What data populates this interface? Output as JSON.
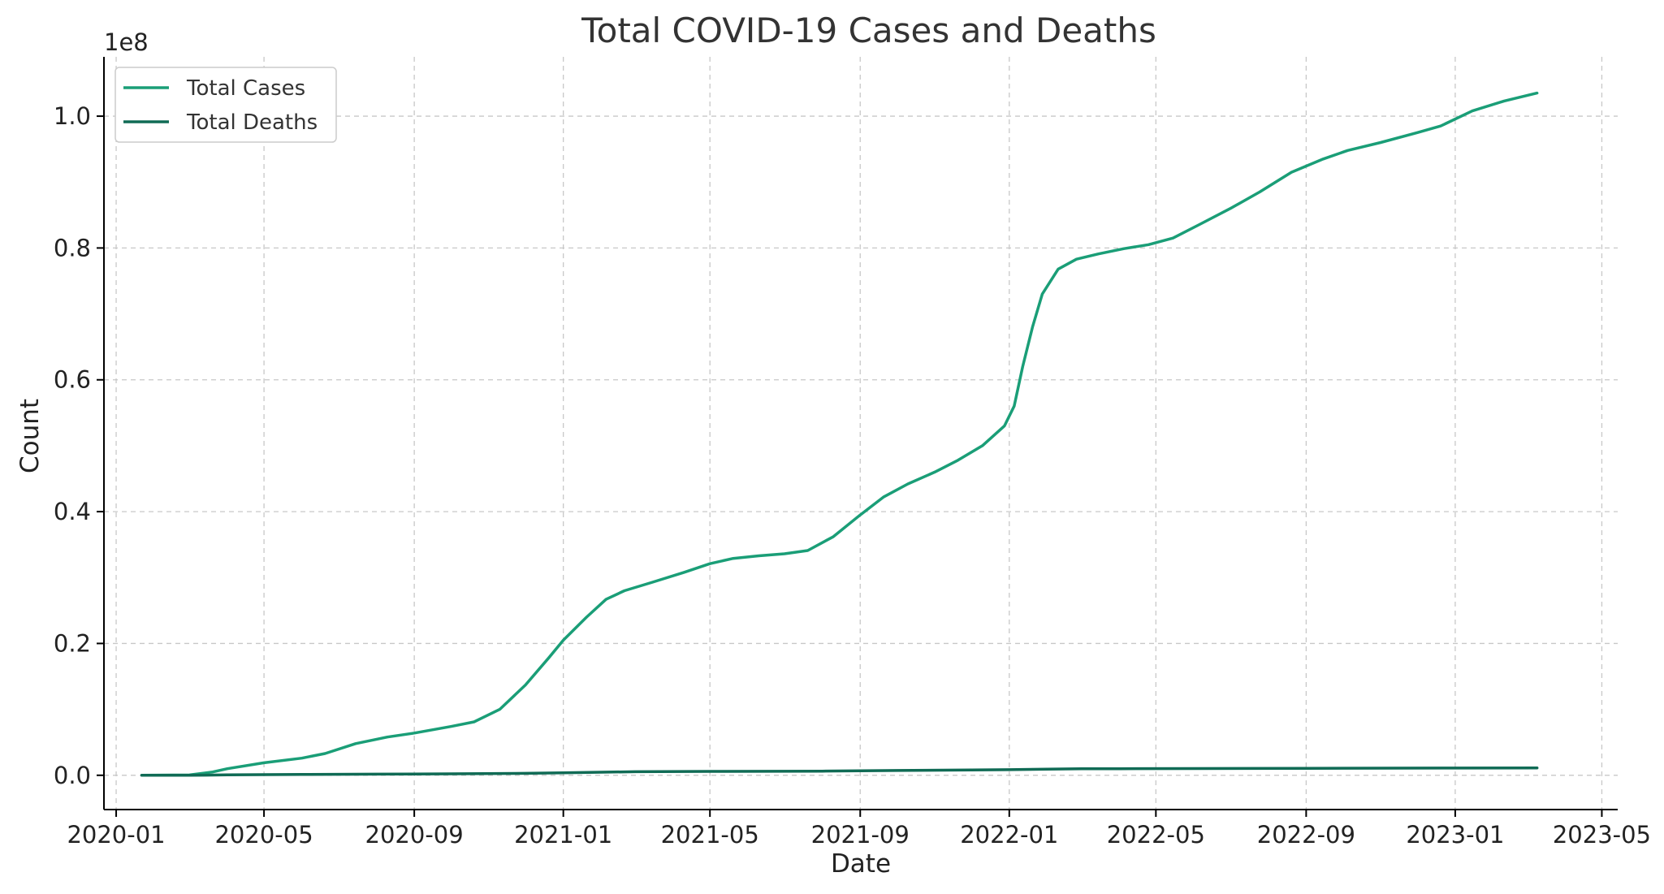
{
  "chart_data": {
    "type": "line",
    "title": "Total COVID-19 Cases and Deaths",
    "xlabel": "Date",
    "ylabel": "Count",
    "y_offset_label": "1e8",
    "y_scale_factor": 100000000,
    "xlim": [
      "2019-12-22",
      "2023-05-14"
    ],
    "ylim": [
      -5200000,
      109000000
    ],
    "grid": true,
    "legend_position": "top-left",
    "x_ticks": [
      "2020-01",
      "2020-05",
      "2020-09",
      "2021-01",
      "2021-05",
      "2021-09",
      "2022-01",
      "2022-05",
      "2022-09",
      "2023-01",
      "2023-05"
    ],
    "y_ticks": [
      "0.0",
      "0.2",
      "0.4",
      "0.6",
      "0.8",
      "1.0"
    ],
    "y_tick_values": [
      0,
      20000000,
      40000000,
      60000000,
      80000000,
      100000000
    ],
    "series": [
      {
        "name": "Total Cases",
        "color": "#1a9e77",
        "x": [
          "2020-01-22",
          "2020-03-01",
          "2020-03-20",
          "2020-04-01",
          "2020-05-01",
          "2020-06-01",
          "2020-06-20",
          "2020-07-15",
          "2020-08-10",
          "2020-09-01",
          "2020-10-01",
          "2020-10-20",
          "2020-11-10",
          "2020-12-01",
          "2020-12-20",
          "2021-01-01",
          "2021-01-20",
          "2021-02-05",
          "2021-02-20",
          "2021-03-15",
          "2021-04-10",
          "2021-05-01",
          "2021-05-20",
          "2021-06-10",
          "2021-07-01",
          "2021-07-20",
          "2021-08-10",
          "2021-09-01",
          "2021-09-20",
          "2021-10-10",
          "2021-11-01",
          "2021-11-20",
          "2021-12-10",
          "2021-12-28",
          "2022-01-05",
          "2022-01-12",
          "2022-01-20",
          "2022-01-28",
          "2022-02-10",
          "2022-02-25",
          "2022-03-15",
          "2022-04-05",
          "2022-04-25",
          "2022-05-15",
          "2022-06-05",
          "2022-07-01",
          "2022-07-25",
          "2022-08-20",
          "2022-09-15",
          "2022-10-05",
          "2022-11-01",
          "2022-12-01",
          "2022-12-20",
          "2023-01-15",
          "2023-02-10",
          "2023-03-09"
        ],
        "values": [
          0,
          50000,
          500000,
          1000000,
          1900000,
          2600000,
          3300000,
          4800000,
          5800000,
          6400000,
          7400000,
          8100000,
          10000000,
          13700000,
          17800000,
          20500000,
          24000000,
          26700000,
          28000000,
          29300000,
          30800000,
          32100000,
          32900000,
          33300000,
          33600000,
          34100000,
          36200000,
          39500000,
          42200000,
          44200000,
          46000000,
          47800000,
          50000000,
          53000000,
          56000000,
          62000000,
          68000000,
          73000000,
          76800000,
          78300000,
          79100000,
          79900000,
          80500000,
          81500000,
          83500000,
          86000000,
          88500000,
          91500000,
          93500000,
          94800000,
          96000000,
          97500000,
          98500000,
          100800000,
          102300000,
          103500000
        ]
      },
      {
        "name": "Total Deaths",
        "color": "#106b55",
        "x": [
          "2020-01-22",
          "2020-03-01",
          "2020-04-01",
          "2020-05-01",
          "2020-06-01",
          "2020-08-01",
          "2020-10-01",
          "2020-12-01",
          "2021-01-01",
          "2021-02-01",
          "2021-03-01",
          "2021-05-01",
          "2021-08-01",
          "2021-10-01",
          "2021-12-01",
          "2022-01-01",
          "2022-02-01",
          "2022-03-01",
          "2022-04-01",
          "2022-06-01",
          "2022-09-01",
          "2023-01-01",
          "2023-03-09"
        ],
        "values": [
          0,
          2000,
          60000,
          100000,
          120000,
          170000,
          220000,
          290000,
          380000,
          470000,
          540000,
          590000,
          630000,
          730000,
          800000,
          850000,
          920000,
          980000,
          1000000,
          1020000,
          1060000,
          1100000,
          1120000
        ]
      }
    ]
  }
}
